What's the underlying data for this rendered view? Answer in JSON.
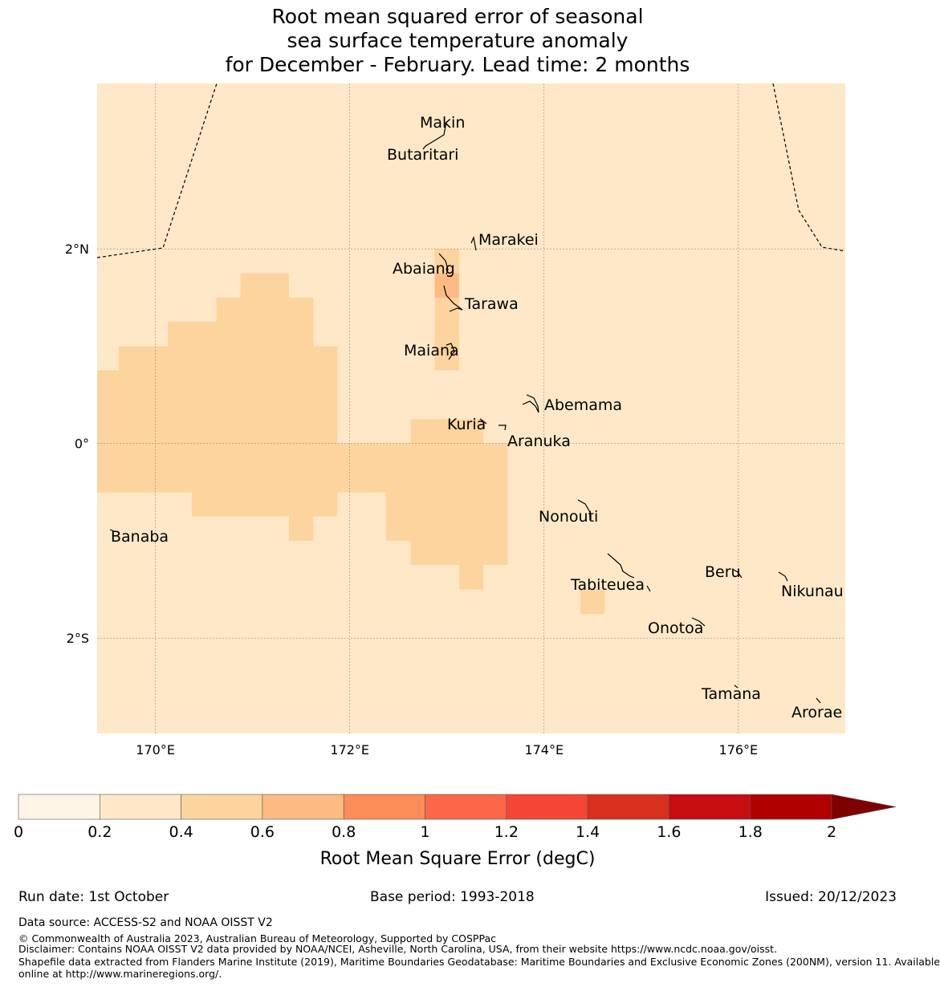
{
  "title": {
    "line1": "Root mean squared error of seasonal",
    "line2": "sea surface temperature anomaly",
    "line3": "for December - February. Lead time: 2 months"
  },
  "map": {
    "background_color": "#fee8c8",
    "lon_range": [
      169.4,
      177.1
    ],
    "lat_range": [
      -2.98,
      3.7
    ],
    "lon_ticks": [
      {
        "value": 170,
        "label": "170°E"
      },
      {
        "value": 172,
        "label": "172°E"
      },
      {
        "value": 174,
        "label": "174°E"
      },
      {
        "value": 176,
        "label": "176°E"
      }
    ],
    "lat_ticks": [
      {
        "value": 2,
        "label": "2°N"
      },
      {
        "value": 0,
        "label": "0°"
      },
      {
        "value": -2,
        "label": "2°S"
      }
    ],
    "rmse_cells": [
      {
        "lon": 169.4,
        "lat": 0.75,
        "lon_end": 169.625,
        "lat_end": -0.5,
        "bin": "0.4-0.6"
      },
      {
        "lon": 169.625,
        "lat": 1.0,
        "lon_end": 170.125,
        "lat_end": -0.5,
        "bin": "0.4-0.6"
      },
      {
        "lon": 170.125,
        "lat": 1.25,
        "lon_end": 170.375,
        "lat_end": -0.5,
        "bin": "0.4-0.6"
      },
      {
        "lon": 170.375,
        "lat": 1.25,
        "lon_end": 170.625,
        "lat_end": -0.75,
        "bin": "0.4-0.6"
      },
      {
        "lon": 170.625,
        "lat": 1.5,
        "lon_end": 170.875,
        "lat_end": -0.75,
        "bin": "0.4-0.6"
      },
      {
        "lon": 170.875,
        "lat": 1.75,
        "lon_end": 171.375,
        "lat_end": -0.75,
        "bin": "0.4-0.6"
      },
      {
        "lon": 171.375,
        "lat": 1.75,
        "lon_end": 171.375,
        "lat_end": -1.0,
        "bin": "0.4-0.6"
      },
      {
        "lon": 171.375,
        "lat": 1.5,
        "lon_end": 171.625,
        "lat_end": -1.0,
        "bin": "0.4-0.6"
      },
      {
        "lon": 171.625,
        "lat": 1.0,
        "lon_end": 171.875,
        "lat_end": -0.75,
        "bin": "0.4-0.6"
      },
      {
        "lon": 171.875,
        "lat": 0.0,
        "lon_end": 172.375,
        "lat_end": -0.5,
        "bin": "0.4-0.6"
      },
      {
        "lon": 172.375,
        "lat": 0.0,
        "lon_end": 172.625,
        "lat_end": -1.0,
        "bin": "0.4-0.6"
      },
      {
        "lon": 172.625,
        "lat": 0.25,
        "lon_end": 173.125,
        "lat_end": -1.25,
        "bin": "0.4-0.6"
      },
      {
        "lon": 173.125,
        "lat": 0.25,
        "lon_end": 173.375,
        "lat_end": -1.5,
        "bin": "0.4-0.6"
      },
      {
        "lon": 173.375,
        "lat": 0.0,
        "lon_end": 173.625,
        "lat_end": -1.25,
        "bin": "0.4-0.6"
      },
      {
        "lon": 172.875,
        "lat": 2.0,
        "lon_end": 173.125,
        "lat_end": 0.75,
        "bin": "0.4-0.6"
      },
      {
        "lon": 174.375,
        "lat": -1.5,
        "lon_end": 174.625,
        "lat_end": -1.75,
        "bin": "0.4-0.6"
      },
      {
        "lon": 172.875,
        "lat": 1.75,
        "lon_end": 173.125,
        "lat_end": 1.5,
        "bin": "0.6-0.8"
      }
    ],
    "islands": [
      {
        "name": "Makin",
        "lon": 172.96,
        "lat": 3.28
      },
      {
        "name": "Butaritari",
        "lon": 172.8,
        "lat": 3.03
      },
      {
        "name": "Marakei",
        "lon": 173.35,
        "lat": 2.05
      },
      {
        "name": "Abaiang",
        "lon": 172.88,
        "lat": 1.85
      },
      {
        "name": "Tarawa",
        "lon": 173.1,
        "lat": 1.4
      },
      {
        "name": "Maiana",
        "lon": 172.95,
        "lat": 0.93
      },
      {
        "name": "Abemama",
        "lon": 173.95,
        "lat": 0.38
      },
      {
        "name": "Kuria",
        "lon": 173.3,
        "lat": 0.2
      },
      {
        "name": "Aranuka",
        "lon": 173.62,
        "lat": 0.15
      },
      {
        "name": "Nonouti",
        "lon": 174.45,
        "lat": -0.7
      },
      {
        "name": "Banaba",
        "lon": 169.55,
        "lat": -0.88
      },
      {
        "name": "Tabiteuea",
        "lon": 174.85,
        "lat": -1.3
      },
      {
        "name": "Beru",
        "lon": 175.98,
        "lat": -1.35
      },
      {
        "name": "Nikunau",
        "lon": 176.45,
        "lat": -1.38
      },
      {
        "name": "Onotoa",
        "lon": 175.58,
        "lat": -1.85
      },
      {
        "name": "Tamana",
        "lon": 175.98,
        "lat": -2.5
      },
      {
        "name": "Arorae",
        "lon": 176.82,
        "lat": -2.65
      }
    ]
  },
  "colorbar": {
    "label": "Root Mean Square Error (degC)",
    "ticks": [
      "0",
      "0.2",
      "0.4",
      "0.6",
      "0.8",
      "1",
      "1.2",
      "1.4",
      "1.6",
      "1.8",
      "2"
    ],
    "colors": [
      "#fff5e6",
      "#fee8c8",
      "#fdd49e",
      "#fdbb84",
      "#fc8d59",
      "#fa6848",
      "#f44535",
      "#d7301f",
      "#c60d0f",
      "#b10000"
    ],
    "extend_color": "#7f0000"
  },
  "footer": {
    "run_date": "Run date: 1st October",
    "base_period": "Base period: 1993-2018",
    "issued": "Issued: 20/12/2023",
    "data_source": "Data source: ACCESS-S2 and NOAA OISST V2",
    "copyright": "© Commonwealth of Australia 2023, Australian Bureau of Meteorology, Supported by COSPPac",
    "disclaimer": "Disclaimer: Contains NOAA OISST V2 data provided by NOAA/NCEI, Asheville, North Carolina, USA, from their website https://www.ncdc.noaa.gov/oisst.",
    "shapefile_line1": "Shapefile data extracted from Flanders Marine Institute (2019), Maritime Boundaries Geodatabase: Maritime Boundaries and Exclusive Economic Zones (200NM), version 11. Available",
    "shapefile_line2": "online at http://www.marineregions.org/."
  }
}
